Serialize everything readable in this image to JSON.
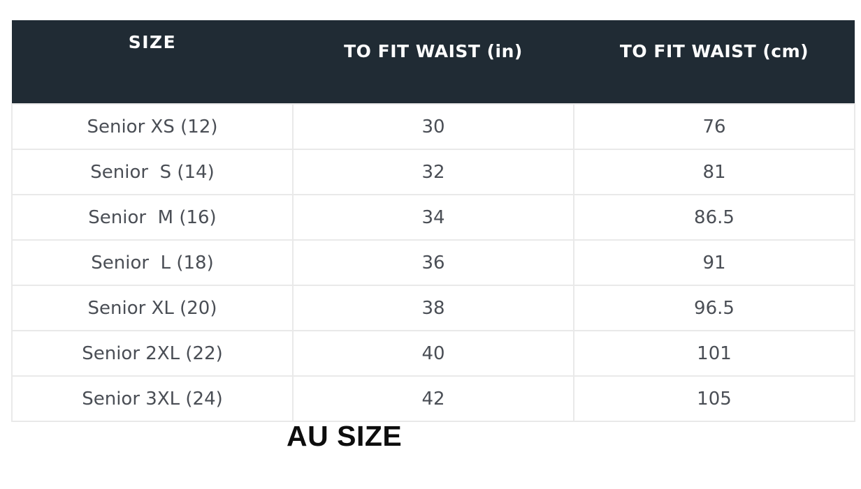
{
  "size_chart": {
    "columns": [
      {
        "id": "size",
        "label": "SIZE"
      },
      {
        "id": "waist_in",
        "label": "TO FIT WAIST (in)"
      },
      {
        "id": "waist_cm",
        "label": "TO FIT WAIST (cm)"
      }
    ],
    "rows": [
      {
        "size": "Senior XS (12)",
        "waist_in": "30",
        "waist_cm": "76"
      },
      {
        "size": "Senior  S (14)",
        "waist_in": "32",
        "waist_cm": "81"
      },
      {
        "size": "Senior  M (16)",
        "waist_in": "34",
        "waist_cm": "86.5"
      },
      {
        "size": "Senior  L (18)",
        "waist_in": "36",
        "waist_cm": "91"
      },
      {
        "size": "Senior XL (20)",
        "waist_in": "38",
        "waist_cm": "96.5"
      },
      {
        "size": "Senior 2XL (22)",
        "waist_in": "40",
        "waist_cm": "101"
      },
      {
        "size": "Senior 3XL (24)",
        "waist_in": "42",
        "waist_cm": "105"
      }
    ]
  },
  "footer": {
    "label": "AU SIZE"
  },
  "colors": {
    "header_bg": "#202b34",
    "header_text": "#ffffff",
    "body_text": "#4a4e55",
    "border": "#e9e9e9",
    "footer_text": "#0d0d0d"
  }
}
